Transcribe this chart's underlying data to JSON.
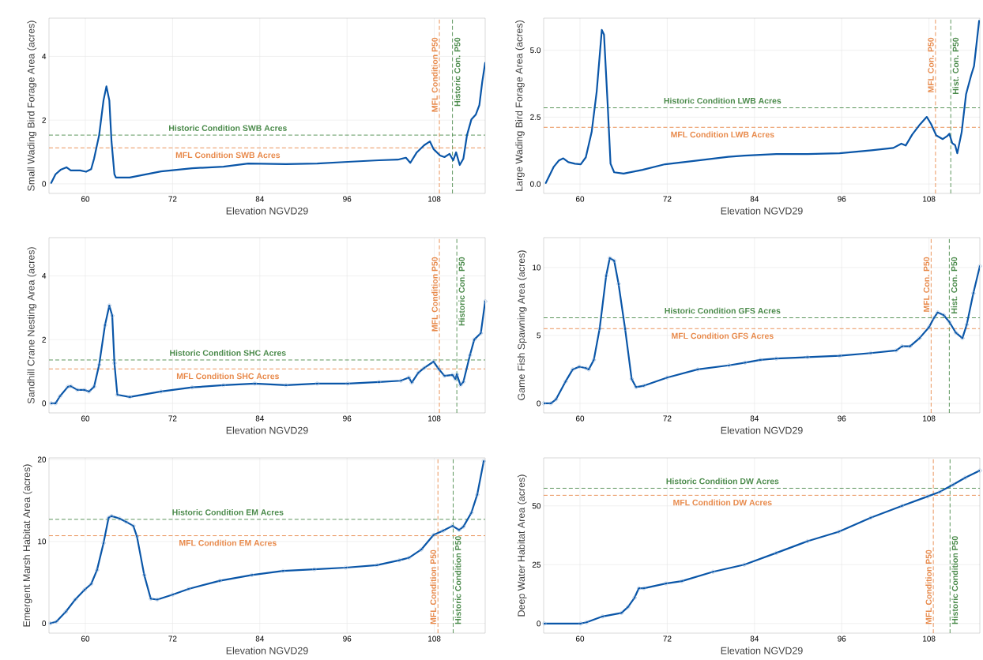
{
  "chart_data": [
    {
      "type": "line",
      "xlabel": "Elevation NGVD29",
      "ylabel": "Small Wading Bird Forage Area (acres)",
      "color": "#0a56a8",
      "grid": true,
      "line_style": "solid",
      "x": [
        55.3,
        55.9,
        56.6,
        57.4,
        58.0,
        59.3,
        60.1,
        60.8,
        61.2,
        61.9,
        62.5,
        62.9,
        63.3,
        63.6,
        64.0,
        64.2,
        66.1,
        70.4,
        74.7,
        79.0,
        82.4,
        87.6,
        91.9,
        96.1,
        100.4,
        103.0,
        104.1,
        104.7,
        105.6,
        106.6,
        107.4,
        107.9,
        108.8,
        109.4,
        110.1,
        110.6,
        111.0,
        111.5,
        112.0,
        112.5,
        113.1,
        113.7,
        114.2,
        114.6,
        115.0
      ],
      "values": [
        0.03,
        0.3,
        0.44,
        0.52,
        0.42,
        0.42,
        0.38,
        0.46,
        0.79,
        1.53,
        2.62,
        3.06,
        2.62,
        1.33,
        0.3,
        0.2,
        0.2,
        0.39,
        0.49,
        0.54,
        0.64,
        0.62,
        0.64,
        0.69,
        0.74,
        0.76,
        0.82,
        0.66,
        0.99,
        1.21,
        1.33,
        1.09,
        0.89,
        0.84,
        0.94,
        0.74,
        0.99,
        0.59,
        0.79,
        1.53,
        2.02,
        2.17,
        2.47,
        3.21,
        3.8
      ],
      "xlim": [
        55,
        115
      ],
      "ylim": [
        -0.3,
        5.2
      ],
      "xticks": [
        60,
        72,
        84,
        96,
        108
      ],
      "yticks": [
        0,
        2,
        4
      ],
      "ref_lines": [
        {
          "axis": "x",
          "value": 108.7,
          "label": "MFL Condition P50",
          "color": "#e8894a",
          "line_style": "dashed"
        },
        {
          "axis": "x",
          "value": 110.5,
          "label": "Historic Con. P50",
          "color": "#4a8a4a",
          "line_style": "dashed"
        },
        {
          "axis": "y",
          "value": 1.53,
          "label": "Historic Condition SWB Acres",
          "color": "#4a8a4a",
          "line_style": "dashed"
        },
        {
          "axis": "y",
          "value": 1.13,
          "label": "MFL Condition SWB Acres",
          "color": "#e8894a",
          "line_style": "dashed"
        }
      ]
    },
    {
      "type": "line",
      "xlabel": "Elevation NGVD29",
      "ylabel": "Large Wading Bird Forage Area (acres)",
      "color": "#0a56a8",
      "grid": true,
      "line_style": "solid",
      "x": [
        55.3,
        56.4,
        57.1,
        57.7,
        58.4,
        59.3,
        60.1,
        60.8,
        61.6,
        62.3,
        63.0,
        63.3,
        63.8,
        64.2,
        64.7,
        66.0,
        68.6,
        71.7,
        76.1,
        80.4,
        82.6,
        87.0,
        91.3,
        95.7,
        100.1,
        103.1,
        104.2,
        104.8,
        105.7,
        106.8,
        107.7,
        108.3,
        109.0,
        109.9,
        110.5,
        110.8,
        111.2,
        111.6,
        111.9,
        112.5,
        113.1,
        113.8,
        114.2,
        114.9
      ],
      "values": [
        0.04,
        0.65,
        0.88,
        0.96,
        0.82,
        0.76,
        0.74,
        1.0,
        1.94,
        3.47,
        5.76,
        5.59,
        3.0,
        0.76,
        0.44,
        0.39,
        0.53,
        0.74,
        0.88,
        1.02,
        1.06,
        1.12,
        1.12,
        1.15,
        1.26,
        1.35,
        1.51,
        1.44,
        1.85,
        2.24,
        2.51,
        2.24,
        1.82,
        1.68,
        1.79,
        1.88,
        1.53,
        1.45,
        1.15,
        1.94,
        3.35,
        4.06,
        4.41,
        6.1
      ],
      "xlim": [
        55,
        115
      ],
      "ylim": [
        -0.35,
        6.2
      ],
      "xticks": [
        60,
        72,
        84,
        96,
        108
      ],
      "yticks": [
        {
          "value": 0,
          "label": "0.0"
        },
        {
          "value": 2.5,
          "label": "2.5"
        },
        {
          "value": 5,
          "label": "5.0"
        }
      ],
      "ref_lines": [
        {
          "axis": "x",
          "value": 108.9,
          "label": "MFL Con. P50",
          "color": "#e8894a",
          "line_style": "dashed"
        },
        {
          "axis": "x",
          "value": 111.0,
          "label": "Hist. Con. P50",
          "color": "#4a8a4a",
          "line_style": "dashed"
        },
        {
          "axis": "y",
          "value": 2.85,
          "label": "Historic Condition LWB Acres",
          "color": "#4a8a4a",
          "line_style": "dashed"
        },
        {
          "axis": "y",
          "value": 2.12,
          "label": "MFL Condition LWB Acres",
          "color": "#e8894a",
          "line_style": "dashed"
        }
      ]
    },
    {
      "type": "line",
      "xlabel": "Elevation NGVD29",
      "ylabel": "Sandhill Crane Nesting Area (acres)",
      "color": "#0a56a8",
      "grid": true,
      "line_style": "solid",
      "marker": "circle",
      "x": [
        55.3,
        55.9,
        56.5,
        57.6,
        58.0,
        58.9,
        59.9,
        60.5,
        61.2,
        61.9,
        62.7,
        63.3,
        63.7,
        64.0,
        64.4,
        66.1,
        70.4,
        74.7,
        79.0,
        83.3,
        87.6,
        91.9,
        96.1,
        100.4,
        103.4,
        104.5,
        104.9,
        105.8,
        106.6,
        107.9,
        108.6,
        109.4,
        110.5,
        110.9,
        111.1,
        111.6,
        112.0,
        112.9,
        113.5,
        114.4,
        115.0
      ],
      "values": [
        0,
        0,
        0.22,
        0.52,
        0.54,
        0.42,
        0.42,
        0.37,
        0.52,
        1.21,
        2.45,
        3.07,
        2.75,
        1.26,
        0.27,
        0.2,
        0.37,
        0.5,
        0.57,
        0.62,
        0.57,
        0.62,
        0.62,
        0.67,
        0.71,
        0.81,
        0.65,
        0.96,
        1.11,
        1.31,
        1.08,
        0.86,
        0.89,
        0.76,
        0.91,
        0.57,
        0.67,
        1.51,
        2.0,
        2.2,
        3.2
      ],
      "xlim": [
        55,
        115
      ],
      "ylim": [
        -0.3,
        5.2
      ],
      "xticks": [
        60,
        72,
        84,
        96,
        108
      ],
      "yticks": [
        0,
        2,
        4
      ],
      "ref_lines": [
        {
          "axis": "x",
          "value": 108.7,
          "label": "MFL Condition P50",
          "color": "#e8894a",
          "line_style": "dashed"
        },
        {
          "axis": "x",
          "value": 111.1,
          "label": "Historic Con. P50",
          "color": "#4a8a4a",
          "line_style": "dashed"
        },
        {
          "axis": "y",
          "value": 1.36,
          "label": "Historic Condition SHC Acres",
          "color": "#4a8a4a",
          "line_style": "dashed"
        },
        {
          "axis": "y",
          "value": 1.08,
          "label": "MFL Condition SHC Acres",
          "color": "#e8894a",
          "line_style": "dashed"
        }
      ]
    },
    {
      "type": "line",
      "xlabel": "Elevation NGVD29",
      "ylabel": "Game Fish Spawning Area (acres)",
      "color": "#0a56a8",
      "grid": true,
      "line_style": "solid",
      "marker": "circle",
      "x": [
        55.0,
        56.0,
        56.7,
        58.0,
        59.0,
        59.9,
        60.8,
        61.2,
        61.9,
        62.7,
        63.6,
        64.1,
        64.7,
        65.3,
        66.2,
        67.1,
        67.7,
        68.8,
        72.0,
        76.2,
        80.5,
        82.7,
        84.8,
        87.0,
        91.3,
        95.7,
        100.0,
        103.5,
        104.3,
        105.4,
        106.7,
        108.0,
        108.7,
        109.2,
        110.0,
        110.8,
        111.7,
        112.6,
        113.2,
        114.1,
        115.0
      ],
      "values": [
        0,
        0,
        0.3,
        1.6,
        2.5,
        2.7,
        2.6,
        2.5,
        3.2,
        5.5,
        9.4,
        10.7,
        10.5,
        8.8,
        5.5,
        1.8,
        1.2,
        1.3,
        1.9,
        2.5,
        2.8,
        3.0,
        3.2,
        3.3,
        3.4,
        3.5,
        3.7,
        3.9,
        4.2,
        4.2,
        4.8,
        5.6,
        6.3,
        6.7,
        6.5,
        6.0,
        5.2,
        4.8,
        5.8,
        8.1,
        10.1
      ],
      "xlim": [
        55,
        115
      ],
      "ylim": [
        -0.7,
        12.2
      ],
      "xticks": [
        60,
        72,
        84,
        96,
        108
      ],
      "yticks": [
        0,
        5,
        10
      ],
      "ref_lines": [
        {
          "axis": "x",
          "value": 108.3,
          "label": "MFL Con. P50",
          "color": "#e8894a",
          "line_style": "dashed"
        },
        {
          "axis": "x",
          "value": 110.8,
          "label": "Hist. Con. P50",
          "color": "#4a8a4a",
          "line_style": "dashed"
        },
        {
          "axis": "y",
          "value": 6.3,
          "label": "Historic Condition GFS Acres",
          "color": "#4a8a4a",
          "line_style": "dashed"
        },
        {
          "axis": "y",
          "value": 5.5,
          "label": "MFL Condition GFS Acres",
          "color": "#e8894a",
          "line_style": "dashed"
        }
      ]
    },
    {
      "type": "line",
      "xlabel": "Elevation NGVD29",
      "ylabel": "Emergent Marsh Habitat Area (acres)",
      "color": "#0a56a8",
      "grid": true,
      "line_style": "solid",
      "marker": "circle",
      "x": [
        55.2,
        56.0,
        57.3,
        58.6,
        59.9,
        60.8,
        61.6,
        62.5,
        63.2,
        63.6,
        64.7,
        65.6,
        66.6,
        67.1,
        68.1,
        69.0,
        69.9,
        72.0,
        74.2,
        78.5,
        82.9,
        87.2,
        91.5,
        95.8,
        100.1,
        103.2,
        104.5,
        106.2,
        107.9,
        109.2,
        110.5,
        111.4,
        112.0,
        113.1,
        113.9,
        114.8
      ],
      "values": [
        0,
        0.2,
        1.4,
        2.9,
        4.1,
        4.8,
        6.5,
        9.8,
        12.9,
        13.1,
        12.8,
        12.4,
        11.9,
        10.6,
        5.9,
        3.0,
        2.9,
        3.5,
        4.2,
        5.2,
        5.9,
        6.4,
        6.6,
        6.8,
        7.1,
        7.7,
        8.0,
        9.0,
        10.8,
        11.3,
        11.9,
        11.4,
        11.8,
        13.5,
        15.7,
        19.8
      ],
      "xlim": [
        55,
        115
      ],
      "ylim": [
        -1.2,
        20.2
      ],
      "xticks": [
        60,
        72,
        84,
        96,
        108
      ],
      "yticks": [
        0,
        10,
        20
      ],
      "ref_lines": [
        {
          "axis": "x",
          "value": 108.5,
          "label": "MFL Condition P50",
          "color": "#e8894a",
          "line_style": "dashed"
        },
        {
          "axis": "x",
          "value": 110.6,
          "label": "Historic Condition P50",
          "color": "#4a8a4a",
          "line_style": "dashed"
        },
        {
          "axis": "y",
          "value": 12.7,
          "label": "Historic Condition EM Acres",
          "color": "#4a8a4a",
          "line_style": "dashed"
        },
        {
          "axis": "y",
          "value": 10.7,
          "label": "MFL Condition EM Acres",
          "color": "#e8894a",
          "line_style": "dashed"
        }
      ]
    },
    {
      "type": "line",
      "xlabel": "Elevation NGVD29",
      "ylabel": "Deep Water Habitat Area (acres)",
      "color": "#0a56a8",
      "grid": true,
      "line_style": "solid",
      "marker": "circle",
      "x": [
        55.1,
        60.1,
        60.9,
        63.1,
        65.7,
        66.6,
        67.5,
        68.1,
        68.8,
        71.8,
        74.0,
        78.3,
        82.6,
        87.0,
        91.3,
        95.6,
        100.0,
        104.3,
        107.8,
        109.5,
        111.3,
        113.0,
        115.0
      ],
      "values": [
        0,
        0,
        0.5,
        3,
        4.5,
        7,
        11,
        15,
        15,
        17,
        18,
        22,
        25,
        30,
        35,
        39,
        45,
        50,
        54,
        56,
        59,
        62,
        65
      ],
      "xlim": [
        55,
        115
      ],
      "ylim": [
        -4.1,
        70.4
      ],
      "xticks": [
        60,
        72,
        84,
        96,
        108
      ],
      "yticks": [
        0,
        25,
        50
      ],
      "ref_lines": [
        {
          "axis": "x",
          "value": 108.6,
          "label": "MFL Condition P50",
          "color": "#e8894a",
          "line_style": "dashed"
        },
        {
          "axis": "x",
          "value": 110.9,
          "label": "Historic Condition P50",
          "color": "#4a8a4a",
          "line_style": "dashed"
        },
        {
          "axis": "y",
          "value": 57.5,
          "label": "Historic Condition DW Acres",
          "color": "#4a8a4a",
          "line_style": "dashed"
        },
        {
          "axis": "y",
          "value": 54.5,
          "label": "MFL Condition DW Acres",
          "color": "#e8894a",
          "line_style": "dashed"
        }
      ]
    }
  ]
}
